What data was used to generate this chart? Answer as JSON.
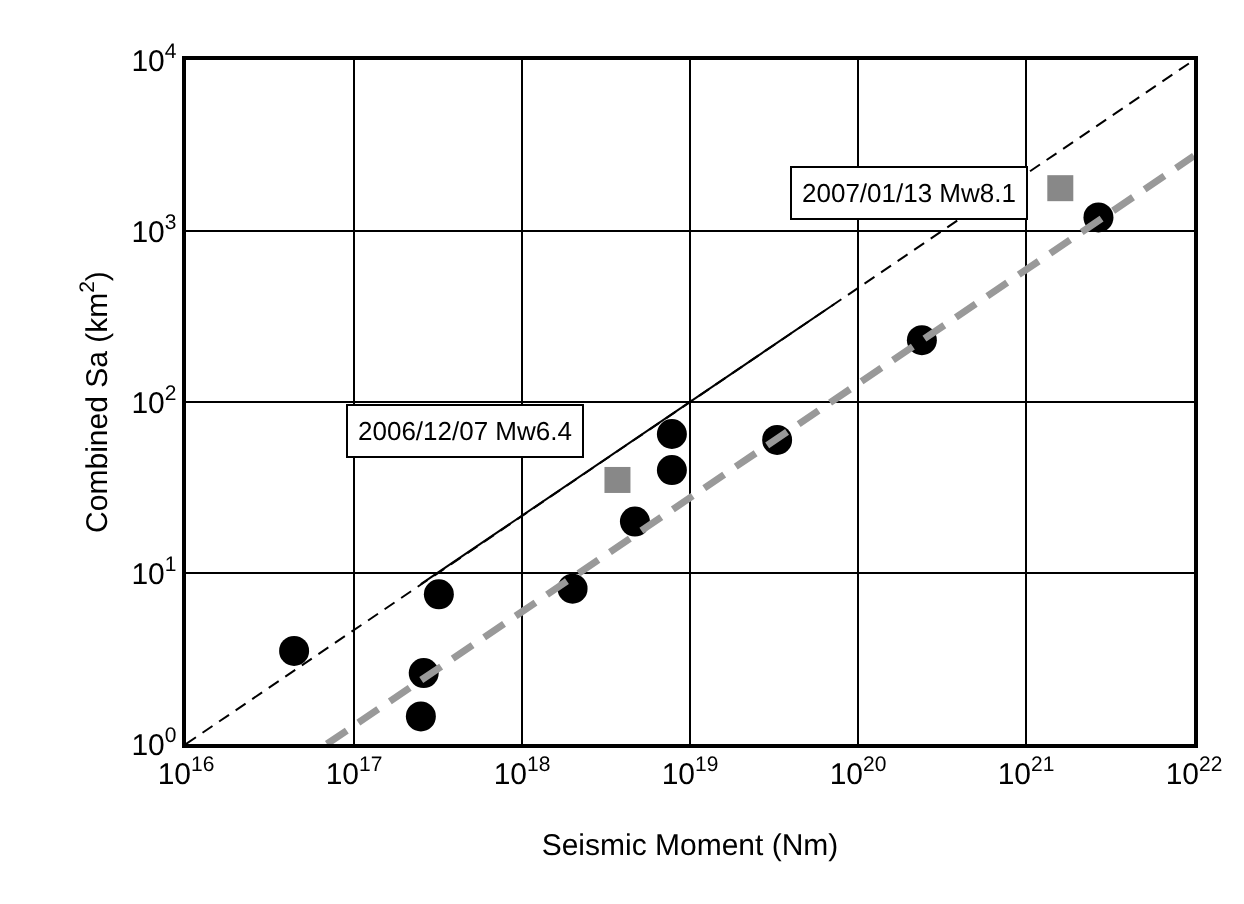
{
  "chart_data": {
    "type": "scatter",
    "xlabel": "Seismic Moment (Nm)",
    "ylabel": "Combined Sa (km$^{2}$)",
    "log": "xy",
    "grid": true,
    "xlim": [
      1e+16,
      1e+22
    ],
    "ylim": [
      1,
      10000
    ],
    "xticks": [
      {
        "value": 1e+16,
        "label": "10$^{16}$"
      },
      {
        "value": 1e+17,
        "label": "10$^{17}$"
      },
      {
        "value": 1e+18,
        "label": "10$^{18}$"
      },
      {
        "value": 1e+19,
        "label": "10$^{19}$"
      },
      {
        "value": 1e+20,
        "label": "10$^{20}$"
      },
      {
        "value": 1e+21,
        "label": "10$^{21}$"
      },
      {
        "value": 1e+22,
        "label": "10$^{22}$"
      }
    ],
    "yticks": [
      {
        "value": 1,
        "label": "10$^{0}$"
      },
      {
        "value": 10,
        "label": "10$^{1}$"
      },
      {
        "value": 100,
        "label": "10$^{2}$"
      },
      {
        "value": 1000,
        "label": "10$^{3}$"
      },
      {
        "value": 10000,
        "label": "10$^{4}$"
      }
    ],
    "series": [
      {
        "type": "line",
        "color": "#000000",
        "line_style": "dashed",
        "marker": "none",
        "x": [
          1e+16,
          1e+22
        ],
        "values": [
          1,
          10000
        ]
      },
      {
        "type": "line",
        "color": "#000000",
        "line_style": "solid",
        "marker": "none",
        "x": [
          2.5e+17,
          7.2e+19
        ],
        "values": [
          8.6,
          373
        ]
      },
      {
        "color": "#000000",
        "marker": "circle",
        "x": [
          4.4e+16,
          2.6e+17,
          2.5e+17,
          3.2e+17,
          2e+18,
          4.7e+18,
          7.8e+18,
          7.8e+18,
          3.3e+19,
          2.4e+20,
          2.7e+21
        ],
        "values": [
          3.5,
          2.6,
          1.45,
          7.5,
          8.1,
          20,
          40,
          65,
          60,
          230,
          1200
        ]
      },
      {
        "color": "#888888",
        "marker": "square",
        "x": [
          3.7e+18,
          1.6e+21
        ],
        "values": [
          35,
          1780
        ]
      },
      {
        "type": "line",
        "color": "#999999",
        "line_style": "dashed",
        "marker": "none",
        "x": [
          6.9e+16,
          1e+22
        ],
        "values": [
          1,
          2750
        ]
      }
    ],
    "annotations": [
      "2006/12/07 Mw6.4",
      "2007/01/13 Mw8.1"
    ]
  }
}
